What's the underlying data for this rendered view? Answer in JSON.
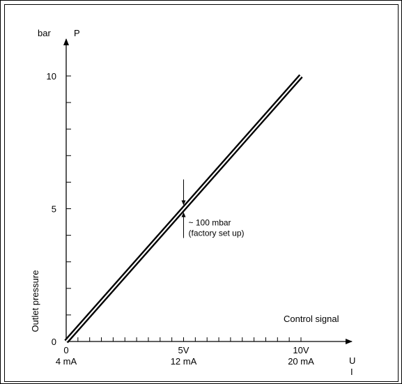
{
  "chart_data": {
    "type": "line",
    "x_range": [
      0,
      10
    ],
    "y_range": [
      0,
      10
    ],
    "x_unit_label": "U",
    "x_unit_label_2": "I",
    "y_unit": "bar",
    "y_symbol": "P",
    "xlabel": "Control signal",
    "ylabel": "Outlet pressure",
    "x_ticks": [
      {
        "value": 0,
        "label": "0",
        "label2": "4 mA"
      },
      {
        "value": 5,
        "label": "5V",
        "label2": "12 mA"
      },
      {
        "value": 10,
        "label": "10V",
        "label2": "20 mA"
      }
    ],
    "y_ticks": [
      {
        "value": 0,
        "label": "0"
      },
      {
        "value": 5,
        "label": "5"
      },
      {
        "value": 10,
        "label": "10"
      }
    ],
    "x_minor_step": 0.5,
    "y_minor_step": 1,
    "series": [
      {
        "x": [
          0,
          10
        ],
        "y": [
          0,
          10
        ],
        "style": "double-line"
      }
    ],
    "annotation": {
      "x": 5,
      "y": 5,
      "line1": "~ 100 mbar",
      "line2": "(factory set up)"
    }
  }
}
